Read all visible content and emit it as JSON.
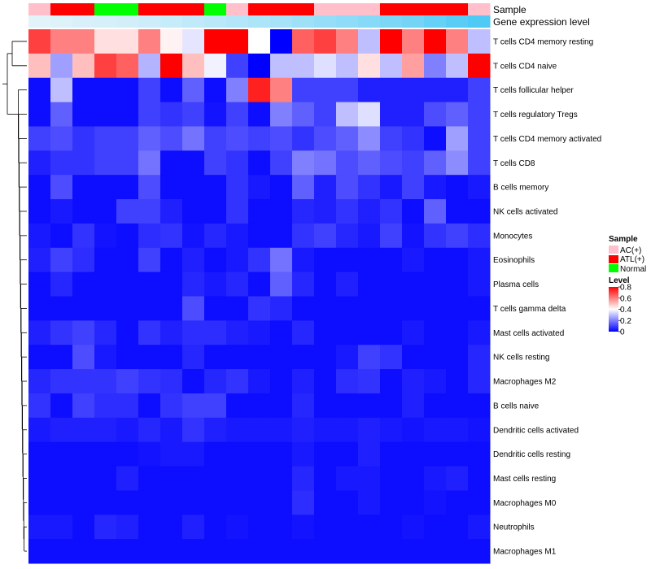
{
  "chart_data": {
    "type": "heatmap",
    "title": "",
    "annotation_titles": [
      "Sample",
      "Gene expression level"
    ],
    "sample_legend": {
      "title": "Sample",
      "entries": [
        {
          "label": "AC(+)",
          "color": "#FFC0CB"
        },
        {
          "label": "ATL(+)",
          "color": "#FF0000"
        },
        {
          "label": "Normal",
          "color": "#00FF00"
        }
      ]
    },
    "level_legend": {
      "title": "Level",
      "ticks": [
        "0.8",
        "0.6",
        "0.4",
        "0.2",
        "0"
      ],
      "tick_values": [
        0.8,
        0.6,
        0.4,
        0.2,
        0
      ],
      "range": [
        0,
        0.8
      ],
      "colors": {
        "low": "#0000FF",
        "mid": "#FFFFFF",
        "high": "#FF0000"
      }
    },
    "sample_annotation": [
      "AC(+)",
      "ATL(+)",
      "ATL(+)",
      "Normal",
      "Normal",
      "ATL(+)",
      "ATL(+)",
      "ATL(+)",
      "Normal",
      "AC(+)",
      "ATL(+)",
      "ATL(+)",
      "ATL(+)",
      "AC(+)",
      "AC(+)",
      "AC(+)",
      "ATL(+)",
      "ATL(+)",
      "ATL(+)",
      "ATL(+)",
      "AC(+)"
    ],
    "gene_expression_annotation": [
      0.02,
      0.05,
      0.08,
      0.1,
      0.13,
      0.16,
      0.2,
      0.24,
      0.28,
      0.32,
      0.36,
      0.4,
      0.45,
      0.5,
      0.55,
      0.6,
      0.66,
      0.72,
      0.8,
      0.88,
      0.95
    ],
    "rows": [
      "T cells CD4 memory resting",
      "T cells CD4 naive",
      "T cells follicular helper",
      "T cells regulatory  Tregs",
      "T cells CD4 memory activated",
      "T cells CD8",
      "B cells memory",
      "NK cells activated",
      "Monocytes",
      "Eosinophils",
      "Plasma cells",
      "T cells gamma delta",
      "Mast cells activated",
      "NK cells resting",
      "Macrophages M2",
      "B cells naive",
      "Dendritic cells activated",
      "Dendritic cells resting",
      "Mast cells resting",
      "Macrophages M0",
      "Neutrophils",
      "Macrophages M1"
    ],
    "values": [
      [
        0.7,
        0.6,
        0.6,
        0.45,
        0.45,
        0.6,
        0.42,
        0.36,
        0.8,
        0.8,
        0.4,
        0.0,
        0.65,
        0.7,
        0.6,
        0.3,
        0.8,
        0.6,
        0.8,
        0.6,
        0.3
      ],
      [
        0.5,
        0.25,
        0.5,
        0.7,
        0.65,
        0.28,
        0.8,
        0.5,
        0.38,
        0.1,
        0.0,
        0.3,
        0.3,
        0.35,
        0.3,
        0.45,
        0.3,
        0.55,
        0.2,
        0.3,
        0.8
      ],
      [
        0.02,
        0.3,
        0.02,
        0.02,
        0.02,
        0.1,
        0.02,
        0.15,
        0.02,
        0.2,
        0.75,
        0.6,
        0.1,
        0.1,
        0.1,
        0.05,
        0.05,
        0.05,
        0.05,
        0.05,
        0.1
      ],
      [
        0.02,
        0.15,
        0.02,
        0.02,
        0.02,
        0.1,
        0.08,
        0.1,
        0.03,
        0.1,
        0.02,
        0.2,
        0.15,
        0.1,
        0.3,
        0.35,
        0.05,
        0.05,
        0.12,
        0.15,
        0.1
      ],
      [
        0.1,
        0.12,
        0.08,
        0.1,
        0.1,
        0.15,
        0.12,
        0.18,
        0.1,
        0.12,
        0.1,
        0.12,
        0.08,
        0.12,
        0.15,
        0.22,
        0.1,
        0.08,
        0.02,
        0.25,
        0.1
      ],
      [
        0.05,
        0.08,
        0.08,
        0.1,
        0.1,
        0.18,
        0.02,
        0.02,
        0.1,
        0.08,
        0.02,
        0.1,
        0.2,
        0.18,
        0.12,
        0.15,
        0.12,
        0.1,
        0.15,
        0.22,
        0.1
      ],
      [
        0.02,
        0.12,
        0.02,
        0.02,
        0.02,
        0.12,
        0.02,
        0.02,
        0.02,
        0.08,
        0.04,
        0.02,
        0.15,
        0.05,
        0.12,
        0.08,
        0.04,
        0.1,
        0.04,
        0.02,
        0.04
      ],
      [
        0.02,
        0.04,
        0.02,
        0.02,
        0.1,
        0.1,
        0.05,
        0.02,
        0.02,
        0.08,
        0.02,
        0.02,
        0.06,
        0.05,
        0.08,
        0.05,
        0.08,
        0.02,
        0.15,
        0.02,
        0.02
      ],
      [
        0.04,
        0.02,
        0.08,
        0.03,
        0.02,
        0.07,
        0.08,
        0.03,
        0.06,
        0.04,
        0.02,
        0.02,
        0.08,
        0.1,
        0.06,
        0.04,
        0.1,
        0.03,
        0.08,
        0.1,
        0.07
      ],
      [
        0.05,
        0.1,
        0.07,
        0.02,
        0.02,
        0.1,
        0.02,
        0.05,
        0.02,
        0.04,
        0.08,
        0.18,
        0.04,
        0.02,
        0.02,
        0.02,
        0.02,
        0.04,
        0.02,
        0.02,
        0.04
      ],
      [
        0.02,
        0.06,
        0.02,
        0.02,
        0.02,
        0.02,
        0.02,
        0.06,
        0.04,
        0.06,
        0.02,
        0.15,
        0.06,
        0.02,
        0.05,
        0.02,
        0.02,
        0.02,
        0.02,
        0.02,
        0.04
      ],
      [
        0.02,
        0.02,
        0.02,
        0.02,
        0.02,
        0.02,
        0.02,
        0.12,
        0.02,
        0.02,
        0.08,
        0.06,
        0.02,
        0.02,
        0.02,
        0.02,
        0.02,
        0.02,
        0.02,
        0.02,
        0.02
      ],
      [
        0.05,
        0.08,
        0.1,
        0.06,
        0.02,
        0.08,
        0.05,
        0.07,
        0.07,
        0.05,
        0.04,
        0.02,
        0.06,
        0.02,
        0.02,
        0.02,
        0.02,
        0.04,
        0.02,
        0.02,
        0.04
      ],
      [
        0.02,
        0.02,
        0.12,
        0.04,
        0.02,
        0.02,
        0.02,
        0.06,
        0.02,
        0.02,
        0.02,
        0.02,
        0.02,
        0.02,
        0.04,
        0.1,
        0.08,
        0.02,
        0.02,
        0.02,
        0.06
      ],
      [
        0.06,
        0.08,
        0.08,
        0.08,
        0.1,
        0.08,
        0.07,
        0.02,
        0.06,
        0.08,
        0.04,
        0.02,
        0.05,
        0.02,
        0.07,
        0.08,
        0.02,
        0.05,
        0.04,
        0.02,
        0.06
      ],
      [
        0.08,
        0.02,
        0.1,
        0.07,
        0.07,
        0.02,
        0.08,
        0.1,
        0.1,
        0.02,
        0.02,
        0.02,
        0.06,
        0.02,
        0.02,
        0.02,
        0.02,
        0.05,
        0.02,
        0.02,
        0.02
      ],
      [
        0.04,
        0.05,
        0.05,
        0.05,
        0.04,
        0.06,
        0.04,
        0.08,
        0.05,
        0.04,
        0.04,
        0.04,
        0.05,
        0.04,
        0.04,
        0.05,
        0.04,
        0.03,
        0.04,
        0.04,
        0.03
      ],
      [
        0.02,
        0.02,
        0.02,
        0.02,
        0.02,
        0.03,
        0.04,
        0.04,
        0.02,
        0.02,
        0.02,
        0.02,
        0.04,
        0.02,
        0.02,
        0.05,
        0.02,
        0.02,
        0.02,
        0.02,
        0.02
      ],
      [
        0.02,
        0.02,
        0.02,
        0.02,
        0.05,
        0.02,
        0.02,
        0.02,
        0.02,
        0.02,
        0.02,
        0.02,
        0.06,
        0.02,
        0.04,
        0.04,
        0.02,
        0.02,
        0.04,
        0.05,
        0.02
      ],
      [
        0.02,
        0.02,
        0.02,
        0.02,
        0.02,
        0.02,
        0.02,
        0.02,
        0.02,
        0.02,
        0.02,
        0.02,
        0.07,
        0.02,
        0.02,
        0.04,
        0.02,
        0.02,
        0.03,
        0.02,
        0.02
      ],
      [
        0.04,
        0.04,
        0.02,
        0.06,
        0.05,
        0.02,
        0.02,
        0.05,
        0.02,
        0.03,
        0.02,
        0.02,
        0.03,
        0.02,
        0.02,
        0.02,
        0.02,
        0.03,
        0.02,
        0.02,
        0.04
      ],
      [
        0.02,
        0.02,
        0.02,
        0.02,
        0.02,
        0.02,
        0.02,
        0.02,
        0.02,
        0.02,
        0.02,
        0.02,
        0.02,
        0.02,
        0.02,
        0.02,
        0.02,
        0.02,
        0.02,
        0.02,
        0.02
      ]
    ]
  }
}
